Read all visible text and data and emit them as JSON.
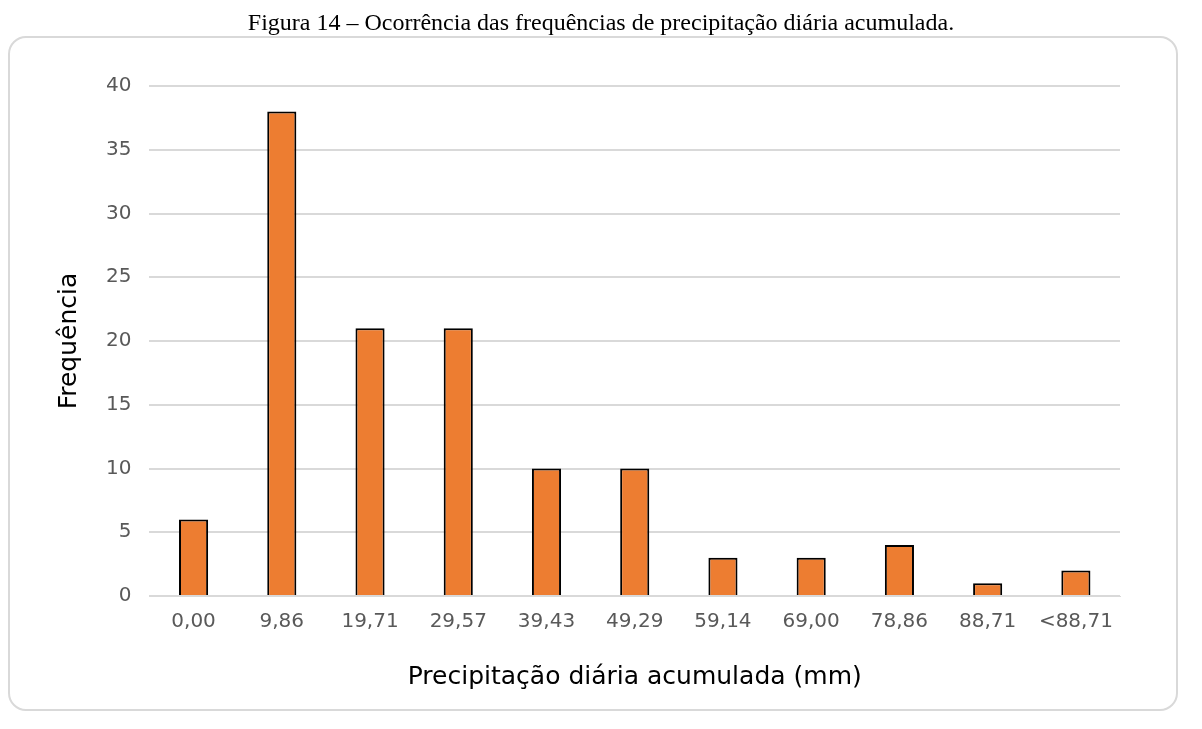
{
  "chart_data": {
    "type": "bar",
    "title": "Figura 14 – Ocorrência das frequências de precipitação diária acumulada.",
    "xlabel": "Precipitação diária acumulada (mm)",
    "ylabel": "Frequência",
    "categories": [
      "0,00",
      "9,86",
      "19,71",
      "29,57",
      "39,43",
      "49,29",
      "59,14",
      "69,00",
      "78,86",
      "88,71",
      "<88,71"
    ],
    "values": [
      6,
      38,
      21,
      21,
      10,
      10,
      3,
      3,
      4,
      1,
      2
    ],
    "color": "#ed7d31",
    "ylim": [
      0,
      40
    ],
    "yticks": [
      0,
      5,
      10,
      15,
      20,
      25,
      30,
      35,
      40
    ],
    "grid": "y",
    "legend": false
  }
}
